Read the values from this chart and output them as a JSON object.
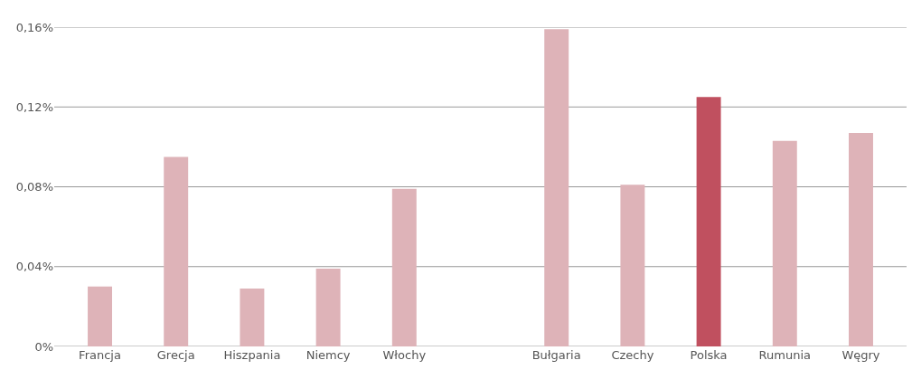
{
  "chart_data": {
    "type": "bar",
    "categories": [
      "Francja",
      "Grecja",
      "Hiszpania",
      "Niemcy",
      "Włochy",
      null,
      "Bułgaria",
      "Czechy",
      "Polska",
      "Rumunia",
      "Węgry"
    ],
    "values": [
      0.03,
      0.095,
      0.029,
      0.039,
      0.079,
      null,
      0.159,
      0.081,
      0.125,
      0.103,
      0.107
    ],
    "colors": [
      "#deb3b8",
      "#deb3b8",
      "#deb3b8",
      "#deb3b8",
      "#deb3b8",
      "#deb3b8",
      "#deb3b8",
      "#deb3b8",
      "#c0505f",
      "#deb3b8",
      "#deb3b8"
    ],
    "ylim": [
      0,
      0.16
    ],
    "yticks": [
      {
        "value": 0,
        "label": "0%"
      },
      {
        "value": 0.04,
        "label": "0,04%"
      },
      {
        "value": 0.08,
        "label": "0,08%"
      },
      {
        "value": 0.12,
        "label": "0,12%"
      },
      {
        "value": 0.16,
        "label": "0,16%"
      }
    ],
    "grid": "y"
  }
}
